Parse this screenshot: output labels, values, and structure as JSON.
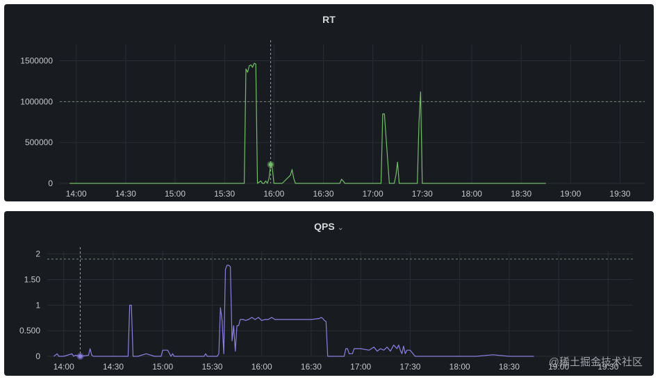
{
  "charts": [
    {
      "title": "RT",
      "chart_data": {
        "type": "line",
        "title": "RT",
        "color": "#73bf69",
        "x_range": [
          "13:50",
          "19:45"
        ],
        "x_ticks": [
          "14:00",
          "14:30",
          "15:00",
          "15:30",
          "16:00",
          "16:30",
          "17:00",
          "17:30",
          "18:00",
          "18:30",
          "19:00",
          "19:30"
        ],
        "y_ticks": [
          "0",
          "500000",
          "1000000",
          "1500000"
        ],
        "ylim": [
          0,
          1700000
        ],
        "threshold": 1000000,
        "crosshair_x": "15:58",
        "hover_point": {
          "x": "15:58",
          "y": 230000
        },
        "series": [
          {
            "x": [
              "13:56",
              "14:00",
              "14:05",
              "14:15",
              "14:20",
              "14:30",
              "14:40",
              "14:50",
              "15:00",
              "15:10",
              "15:20",
              "15:36",
              "15:38",
              "15:40",
              "15:41",
              "15:42",
              "15:43",
              "15:44",
              "15:45",
              "15:46",
              "15:47",
              "15:48",
              "15:49",
              "15:50",
              "15:52",
              "15:53",
              "15:54",
              "15:55",
              "15:56",
              "15:57",
              "15:58",
              "15:59",
              "16:00",
              "16:05",
              "16:10",
              "16:11",
              "16:12",
              "16:13",
              "16:15",
              "16:30",
              "16:40",
              "16:41",
              "16:42",
              "16:43",
              "16:50",
              "17:00",
              "17:04",
              "17:05",
              "17:06",
              "17:07",
              "17:10",
              "17:12",
              "17:13",
              "17:14",
              "17:15",
              "17:16",
              "17:17",
              "17:18",
              "17:19",
              "17:20",
              "17:21",
              "17:22",
              "17:23",
              "17:24",
              "17:25",
              "17:26",
              "17:27",
              "17:28",
              "17:29",
              "17:30",
              "17:40",
              "18:00",
              "18:20",
              "18:30",
              "18:45"
            ],
            "y": [
              0,
              0,
              0,
              0,
              0,
              0,
              0,
              0,
              0,
              0,
              0,
              0,
              0,
              0,
              0,
              0,
              1400000,
              1360000,
              1440000,
              1450000,
              1420000,
              1470000,
              1460000,
              0,
              30000,
              0,
              0,
              30000,
              0,
              60000,
              230000,
              180000,
              0,
              0,
              100000,
              170000,
              60000,
              0,
              0,
              0,
              0,
              50000,
              30000,
              0,
              0,
              0,
              0,
              0,
              850000,
              850000,
              0,
              0,
              0,
              100000,
              260000,
              0,
              0,
              0,
              0,
              0,
              0,
              0,
              0,
              0,
              0,
              0,
              0,
              750000,
              1120000,
              0,
              0,
              0,
              0,
              0,
              0
            ]
          }
        ]
      }
    },
    {
      "title": "QPS",
      "title_suffix": "⌄",
      "chart_data": {
        "type": "line",
        "title": "QPS",
        "color": "#8f7fe3",
        "x_range": [
          "13:50",
          "19:45"
        ],
        "x_ticks": [
          "14:00",
          "14:30",
          "15:00",
          "15:30",
          "16:00",
          "16:30",
          "17:00",
          "17:30",
          "18:00",
          "18:30",
          "19:00",
          "19:30"
        ],
        "y_ticks": [
          "0",
          "0.500",
          "1",
          "1.50",
          "2"
        ],
        "ylim": [
          0,
          2.05
        ],
        "threshold": 1.9,
        "crosshair_x": "14:10",
        "hover_point": {
          "x": "14:10",
          "y": 0
        },
        "series": [
          {
            "x": [
              "13:54",
              "13:56",
              "13:57",
              "13:58",
              "14:00",
              "14:05",
              "14:06",
              "14:07",
              "14:10",
              "14:15",
              "14:16",
              "14:17",
              "14:18",
              "14:20",
              "14:30",
              "14:39",
              "14:40",
              "14:41",
              "14:42",
              "14:43",
              "14:45",
              "14:50",
              "14:55",
              "14:59",
              "15:00",
              "15:01",
              "15:03",
              "15:05",
              "15:06",
              "15:07",
              "15:08",
              "15:10",
              "15:20",
              "15:25",
              "15:26",
              "15:27",
              "15:28",
              "15:30",
              "15:33",
              "15:34",
              "15:35",
              "15:36",
              "15:37",
              "15:38",
              "15:39",
              "15:40",
              "15:41",
              "15:42",
              "15:43",
              "15:44",
              "15:45",
              "15:46",
              "15:47",
              "15:48",
              "15:49",
              "15:50",
              "15:52",
              "15:54",
              "15:56",
              "15:58",
              "16:00",
              "16:02",
              "16:04",
              "16:06",
              "16:08",
              "16:10",
              "16:15",
              "16:20",
              "16:25",
              "16:30",
              "16:35",
              "16:36",
              "16:37",
              "16:38",
              "16:39",
              "16:40",
              "16:45",
              "16:50",
              "16:51",
              "16:52",
              "16:53",
              "16:55",
              "16:56",
              "17:00",
              "17:05",
              "17:08",
              "17:10",
              "17:12",
              "17:14",
              "17:16",
              "17:18",
              "17:20",
              "17:22",
              "17:23",
              "17:24",
              "17:25",
              "17:26",
              "17:27",
              "17:28",
              "17:30",
              "17:33",
              "17:40",
              "17:50",
              "18:00",
              "18:10",
              "18:20",
              "18:30",
              "18:40",
              "18:45"
            ],
            "y": [
              0,
              0.05,
              0,
              0,
              0,
              0.05,
              0,
              0.02,
              0,
              0.02,
              0.15,
              0.02,
              0,
              0,
              0,
              0,
              1.0,
              1.0,
              0,
              0,
              0,
              0.05,
              0,
              0,
              0.12,
              0.12,
              0.12,
              0,
              0.05,
              0,
              0,
              0,
              0,
              0,
              0.05,
              0,
              0,
              0,
              0,
              0.05,
              0.95,
              0.7,
              0.05,
              1.7,
              1.78,
              1.78,
              1.75,
              0.3,
              0.6,
              0.1,
              0.6,
              0.6,
              0.72,
              0.72,
              0.72,
              0.7,
              0.72,
              0.76,
              0.72,
              0.76,
              0.7,
              0.72,
              0.72,
              0.76,
              0.72,
              0.72,
              0.72,
              0.72,
              0.72,
              0.72,
              0.74,
              0.76,
              0.74,
              0.7,
              0.68,
              0,
              0,
              0,
              0.15,
              0.15,
              0.05,
              0.05,
              0.15,
              0.15,
              0.12,
              0.18,
              0.1,
              0.15,
              0.12,
              0.18,
              0.1,
              0.22,
              0.15,
              0.22,
              0.12,
              0.05,
              0.2,
              0.05,
              0.12,
              0.12,
              0,
              0,
              0,
              0,
              0,
              0.03,
              0,
              0,
              0
            ]
          }
        ]
      }
    }
  ],
  "watermark": "@稀土掘金技术社区"
}
